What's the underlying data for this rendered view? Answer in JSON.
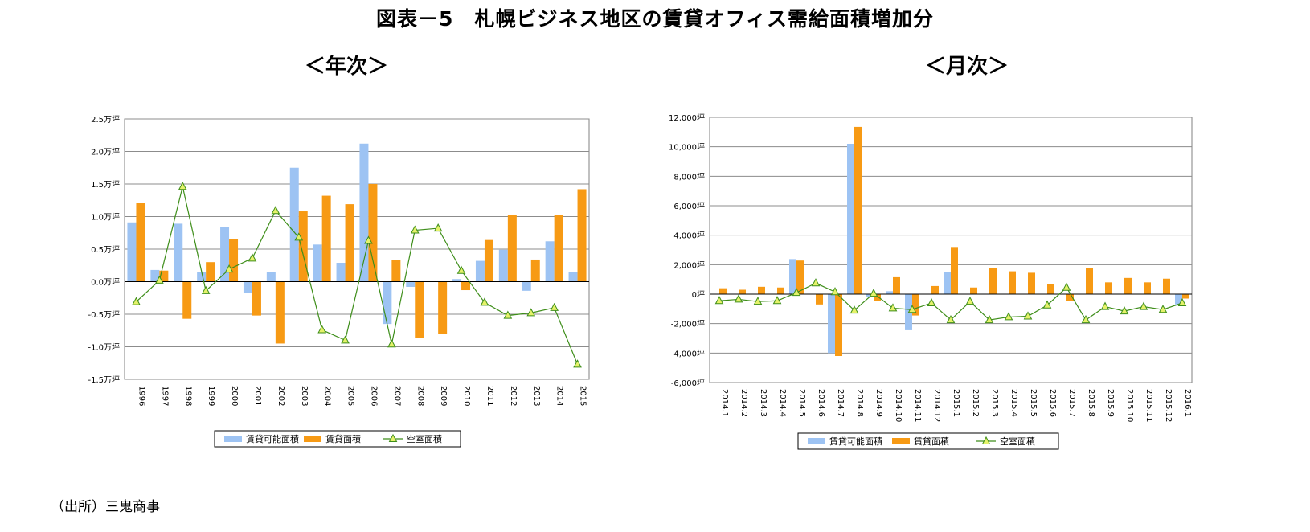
{
  "title": "図表－5　札幌ビジネス地区の賃貸オフィス需給面積増加分",
  "source": "（出所）三鬼商事",
  "colors": {
    "available": "#9DC3F3",
    "leased": "#F79A14",
    "vacant_line": "#3E8E1A",
    "vacant_marker": "#E5F26A"
  },
  "chart_data": [
    {
      "type": "bar",
      "title": "＜年次＞",
      "categories": [
        "1996",
        "1997",
        "1998",
        "1999",
        "2000",
        "2001",
        "2002",
        "2003",
        "2004",
        "2005",
        "2006",
        "2007",
        "2008",
        "2009",
        "2010",
        "2011",
        "2012",
        "2013",
        "2014",
        "2015"
      ],
      "series": [
        {
          "name": "賃貸可能面積",
          "type": "bar",
          "values": [
            0.91,
            0.18,
            0.89,
            0.15,
            0.84,
            -0.17,
            0.15,
            1.75,
            0.57,
            0.29,
            2.12,
            -0.65,
            -0.08,
            0.0,
            0.04,
            0.32,
            0.49,
            -0.14,
            0.62,
            0.15
          ]
        },
        {
          "name": "賃貸面積",
          "type": "bar",
          "values": [
            1.21,
            0.17,
            -0.57,
            0.3,
            0.65,
            -0.52,
            -0.95,
            1.08,
            1.32,
            1.19,
            1.5,
            0.33,
            -0.86,
            -0.8,
            -0.13,
            0.64,
            1.02,
            0.34,
            1.02,
            1.42
          ]
        },
        {
          "name": "空室面積",
          "type": "line",
          "values": [
            -0.31,
            0.02,
            1.46,
            -0.14,
            0.19,
            0.36,
            1.09,
            0.68,
            -0.74,
            -0.9,
            0.63,
            -0.96,
            0.79,
            0.82,
            0.17,
            -0.32,
            -0.52,
            -0.48,
            -0.4,
            -1.27
          ]
        }
      ],
      "ylim": [
        -1.5,
        2.5
      ],
      "yticks": [
        -1.5,
        -1.0,
        -0.5,
        0.0,
        0.5,
        1.0,
        1.5,
        2.0,
        2.5
      ],
      "ytick_labels": [
        "-1.5万坪",
        "-1.0万坪",
        "-0.5万坪",
        "0.0万坪",
        "0.5万坪",
        "1.0万坪",
        "1.5万坪",
        "2.0万坪",
        "2.5万坪"
      ],
      "grid": true,
      "legend": "bottom"
    },
    {
      "type": "bar",
      "title": "＜月次＞",
      "categories": [
        "2014.1",
        "2014.2",
        "2014.3",
        "2014.4",
        "2014.5",
        "2014.6",
        "2014.7",
        "2014.8",
        "2014.9",
        "2014.10",
        "2014.11",
        "2014.12",
        "2015.1",
        "2015.2",
        "2015.3",
        "2015.4",
        "2015.5",
        "2015.6",
        "2015.7",
        "2015.8",
        "2015.9",
        "2015.10",
        "2015.11",
        "2015.12",
        "2016.1"
      ],
      "series": [
        {
          "name": "賃貸可能面積",
          "type": "bar",
          "values": [
            0,
            0,
            0,
            0,
            2380,
            0,
            -4000,
            10200,
            -200,
            200,
            -2450,
            0,
            1500,
            0,
            0,
            0,
            0,
            0,
            0,
            0,
            0,
            0,
            0,
            0,
            -700
          ]
        },
        {
          "name": "賃貸面積",
          "type": "bar",
          "values": [
            400,
            300,
            500,
            450,
            2280,
            -700,
            -4200,
            11350,
            -450,
            1150,
            -1450,
            550,
            3200,
            450,
            1800,
            1550,
            1450,
            700,
            -450,
            1750,
            800,
            1100,
            800,
            1050,
            -300
          ]
        },
        {
          "name": "空室面積",
          "type": "line",
          "values": [
            -450,
            -350,
            -500,
            -450,
            100,
            750,
            150,
            -1100,
            50,
            -950,
            -1050,
            -600,
            -1750,
            -500,
            -1750,
            -1550,
            -1500,
            -750,
            450,
            -1750,
            -850,
            -1150,
            -850,
            -1050,
            -600
          ]
        }
      ],
      "ylim": [
        -6000,
        12000
      ],
      "yticks": [
        -6000,
        -4000,
        -2000,
        0,
        2000,
        4000,
        6000,
        8000,
        10000,
        12000
      ],
      "ytick_labels": [
        "-6,000坪",
        "-4,000坪",
        "-2,000坪",
        "0坪",
        "2,000坪",
        "4,000坪",
        "6,000坪",
        "8,000坪",
        "10,000坪",
        "12,000坪"
      ],
      "grid": true,
      "legend": "bottom"
    }
  ]
}
